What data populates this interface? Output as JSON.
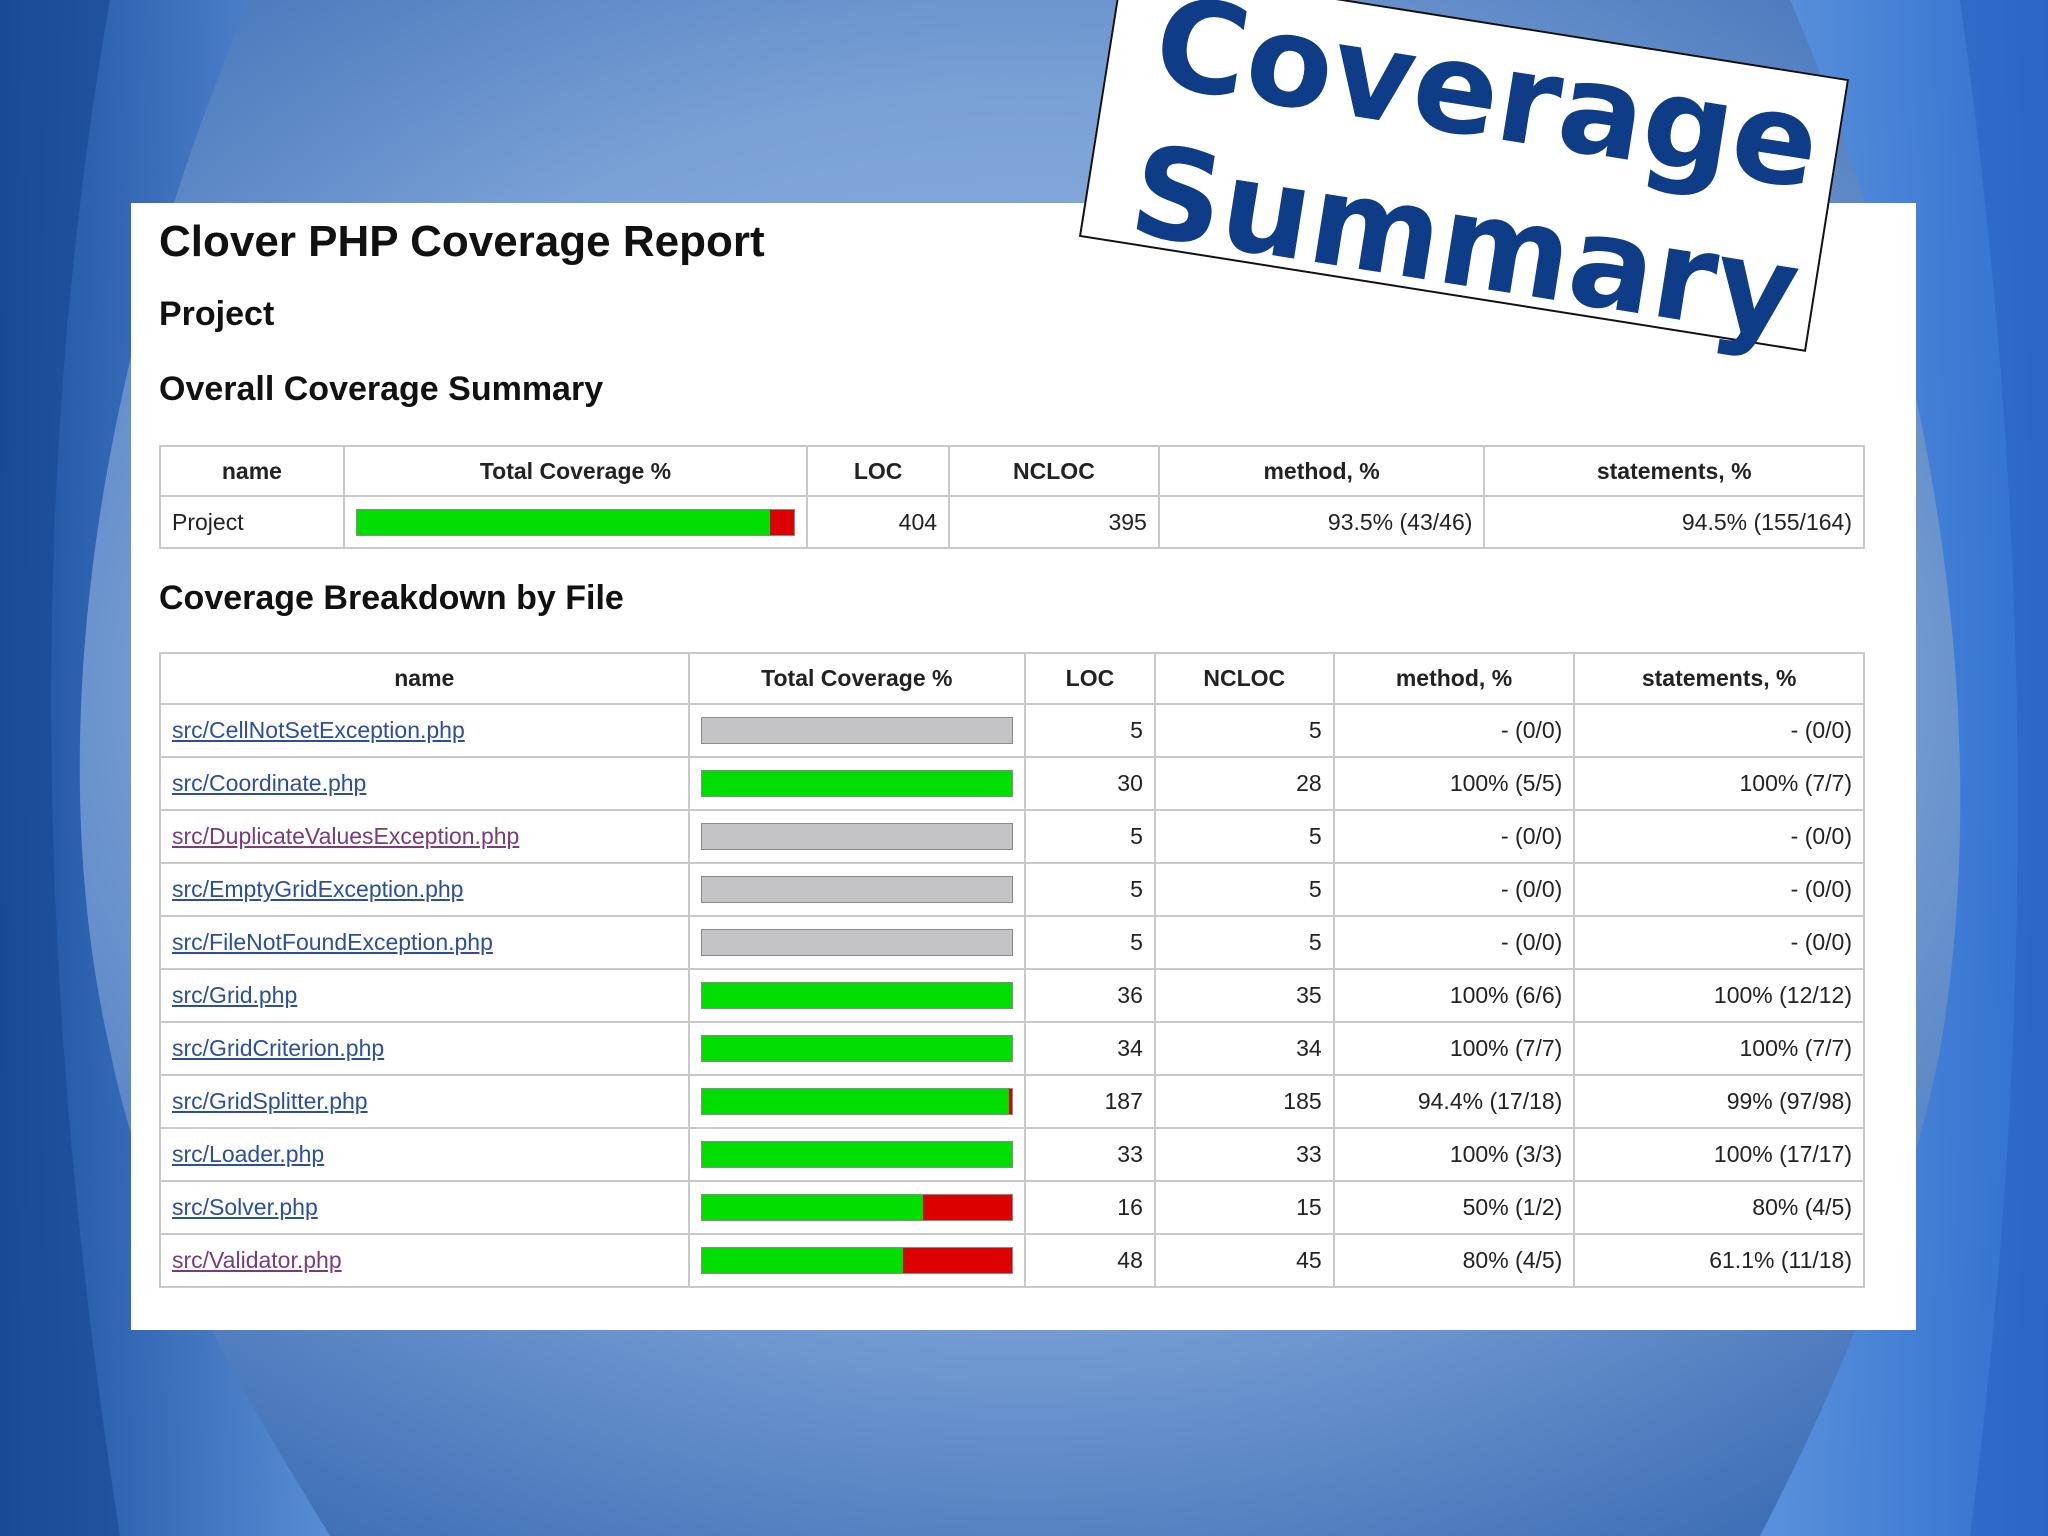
{
  "badge": {
    "line1": "Coverage",
    "line2": "Summary"
  },
  "report": {
    "title": "Clover PHP Coverage Report",
    "project_heading": "Project",
    "overall_heading": "Overall Coverage Summary",
    "breakdown_heading": "Coverage Breakdown by File"
  },
  "columns": {
    "name": "name",
    "total": "Total Coverage %",
    "loc": "LOC",
    "ncloc": "NCLOC",
    "method": "method, %",
    "statements": "statements, %"
  },
  "overall": {
    "name": "Project",
    "covered_fraction": 0.945,
    "loc": "404",
    "ncloc": "395",
    "method": "93.5% (43/46)",
    "statements": "94.5% (155/164)"
  },
  "files": [
    {
      "name": "src/CellNotSetException.php",
      "visited": false,
      "covered_fraction": null,
      "loc": "5",
      "ncloc": "5",
      "method": "- (0/0)",
      "statements": "- (0/0)"
    },
    {
      "name": "src/Coordinate.php",
      "visited": false,
      "covered_fraction": 1.0,
      "loc": "30",
      "ncloc": "28",
      "method": "100% (5/5)",
      "statements": "100% (7/7)"
    },
    {
      "name": "src/DuplicateValuesException.php",
      "visited": true,
      "covered_fraction": null,
      "loc": "5",
      "ncloc": "5",
      "method": "- (0/0)",
      "statements": "- (0/0)"
    },
    {
      "name": "src/EmptyGridException.php",
      "visited": false,
      "covered_fraction": null,
      "loc": "5",
      "ncloc": "5",
      "method": "- (0/0)",
      "statements": "- (0/0)"
    },
    {
      "name": "src/FileNotFoundException.php",
      "visited": false,
      "covered_fraction": null,
      "loc": "5",
      "ncloc": "5",
      "method": "- (0/0)",
      "statements": "- (0/0)"
    },
    {
      "name": "src/Grid.php",
      "visited": false,
      "covered_fraction": 1.0,
      "loc": "36",
      "ncloc": "35",
      "method": "100% (6/6)",
      "statements": "100% (12/12)"
    },
    {
      "name": "src/GridCriterion.php",
      "visited": false,
      "covered_fraction": 1.0,
      "loc": "34",
      "ncloc": "34",
      "method": "100% (7/7)",
      "statements": "100% (7/7)"
    },
    {
      "name": "src/GridSplitter.php",
      "visited": false,
      "covered_fraction": 0.99,
      "loc": "187",
      "ncloc": "185",
      "method": "94.4% (17/18)",
      "statements": "99% (97/98)"
    },
    {
      "name": "src/Loader.php",
      "visited": false,
      "covered_fraction": 1.0,
      "loc": "33",
      "ncloc": "33",
      "method": "100% (3/3)",
      "statements": "100% (17/17)"
    },
    {
      "name": "src/Solver.php",
      "visited": false,
      "covered_fraction": 0.714,
      "loc": "16",
      "ncloc": "15",
      "method": "50% (1/2)",
      "statements": "80% (4/5)"
    },
    {
      "name": "src/Validator.php",
      "visited": true,
      "covered_fraction": 0.65,
      "loc": "48",
      "ncloc": "45",
      "method": "80% (4/5)",
      "statements": "61.1% (11/18)"
    }
  ],
  "colors": {
    "covered": "#00dd00",
    "uncovered": "#dd0000",
    "no_data": "#c4c4c7",
    "link": "#2b4f9c",
    "link_visited": "#7b3a7c",
    "badge_text": "#0f3c86"
  }
}
